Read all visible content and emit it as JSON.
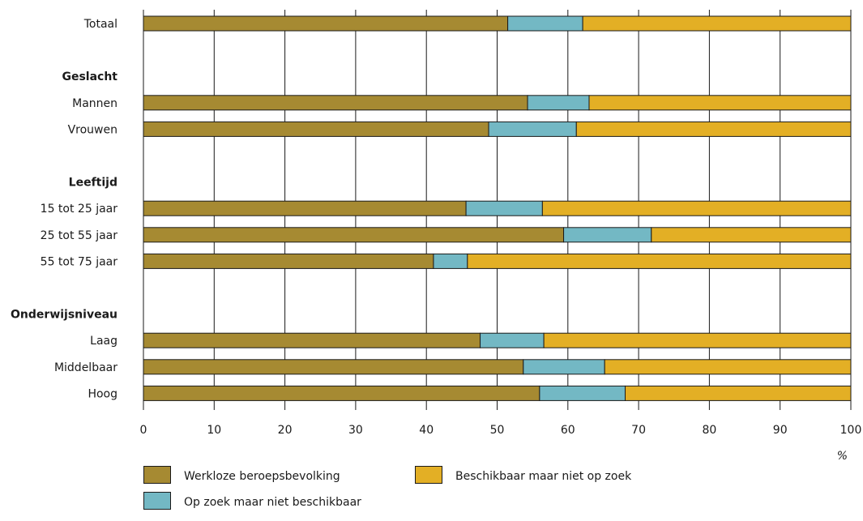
{
  "chart_data": {
    "type": "bar",
    "orientation": "horizontal",
    "stacked": true,
    "rows": [
      {
        "label": "Totaal",
        "kind": "category"
      },
      {
        "label": "",
        "kind": "spacer"
      },
      {
        "label": "Geslacht",
        "kind": "group"
      },
      {
        "label": "Mannen",
        "kind": "category"
      },
      {
        "label": "Vrouwen",
        "kind": "category"
      },
      {
        "label": "",
        "kind": "spacer"
      },
      {
        "label": "Leeftijd",
        "kind": "group"
      },
      {
        "label": "15 tot 25 jaar",
        "kind": "category"
      },
      {
        "label": "25 tot 55 jaar",
        "kind": "category"
      },
      {
        "label": "55 tot 75 jaar",
        "kind": "category"
      },
      {
        "label": "",
        "kind": "spacer"
      },
      {
        "label": "Onderwijsniveau",
        "kind": "group"
      },
      {
        "label": "Laag",
        "kind": "category"
      },
      {
        "label": "Middelbaar",
        "kind": "category"
      },
      {
        "label": "Hoog",
        "kind": "category"
      }
    ],
    "categories": [
      "Totaal",
      "Mannen",
      "Vrouwen",
      "15 tot 25 jaar",
      "25 tot 55 jaar",
      "55 tot 75 jaar",
      "Laag",
      "Middelbaar",
      "Hoog"
    ],
    "series": [
      {
        "name": "Werkloze beroepsbevolking",
        "color": "#a68a32",
        "values": [
          51.5,
          54.3,
          48.8,
          45.6,
          59.4,
          41.0,
          47.6,
          53.7,
          56.0
        ]
      },
      {
        "name": "Op zoek maar niet beschikbaar",
        "color": "#73b8c4",
        "values": [
          10.6,
          8.7,
          12.4,
          10.8,
          12.4,
          4.8,
          9.0,
          11.5,
          12.1
        ]
      },
      {
        "name": "Beschikbaar maar niet op zoek",
        "color": "#e3af25",
        "values": [
          37.9,
          37.0,
          38.8,
          43.6,
          28.2,
          54.2,
          43.4,
          34.8,
          31.9
        ]
      }
    ],
    "xlim": [
      0,
      100
    ],
    "xticks": [
      0,
      10,
      20,
      30,
      40,
      50,
      60,
      70,
      80,
      90,
      100
    ],
    "x_unit": "%",
    "grid": true,
    "legend_position": "bottom"
  }
}
